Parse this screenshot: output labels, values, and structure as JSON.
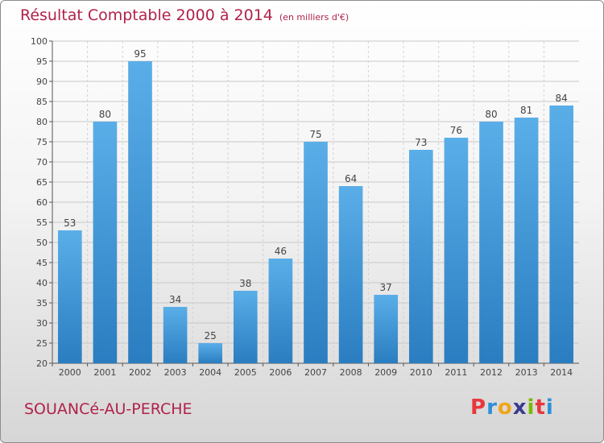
{
  "chart_data": {
    "type": "bar",
    "title": "Résultat Comptable 2000 à 2014",
    "subtitle": "(en milliers d'€)",
    "categories": [
      "2000",
      "2001",
      "2002",
      "2003",
      "2004",
      "2005",
      "2006",
      "2007",
      "2008",
      "2009",
      "2010",
      "2011",
      "2012",
      "2013",
      "2014"
    ],
    "values": [
      53,
      80,
      95,
      34,
      25,
      38,
      46,
      75,
      64,
      37,
      73,
      76,
      80,
      81,
      84
    ],
    "ylim": [
      20,
      100
    ],
    "yticks": [
      20,
      25,
      30,
      35,
      40,
      45,
      50,
      55,
      60,
      65,
      70,
      75,
      80,
      85,
      90,
      95,
      100
    ],
    "xlabel": "",
    "ylabel": "",
    "grid": true
  },
  "footer": {
    "town": "SOUANCé-AU-PERCHE",
    "logo_letters": [
      "P",
      "r",
      "o",
      "x",
      "i",
      "t",
      "i"
    ],
    "logo_colors": [
      "#e8383d",
      "#2d8fd6",
      "#f2a516",
      "#3b3b8f",
      "#7ab800",
      "#e8383d",
      "#2d8fd6"
    ]
  },
  "colors": {
    "bar_light": "#5aaee8",
    "bar_dark": "#2a7dc0",
    "title": "#b0224a"
  }
}
